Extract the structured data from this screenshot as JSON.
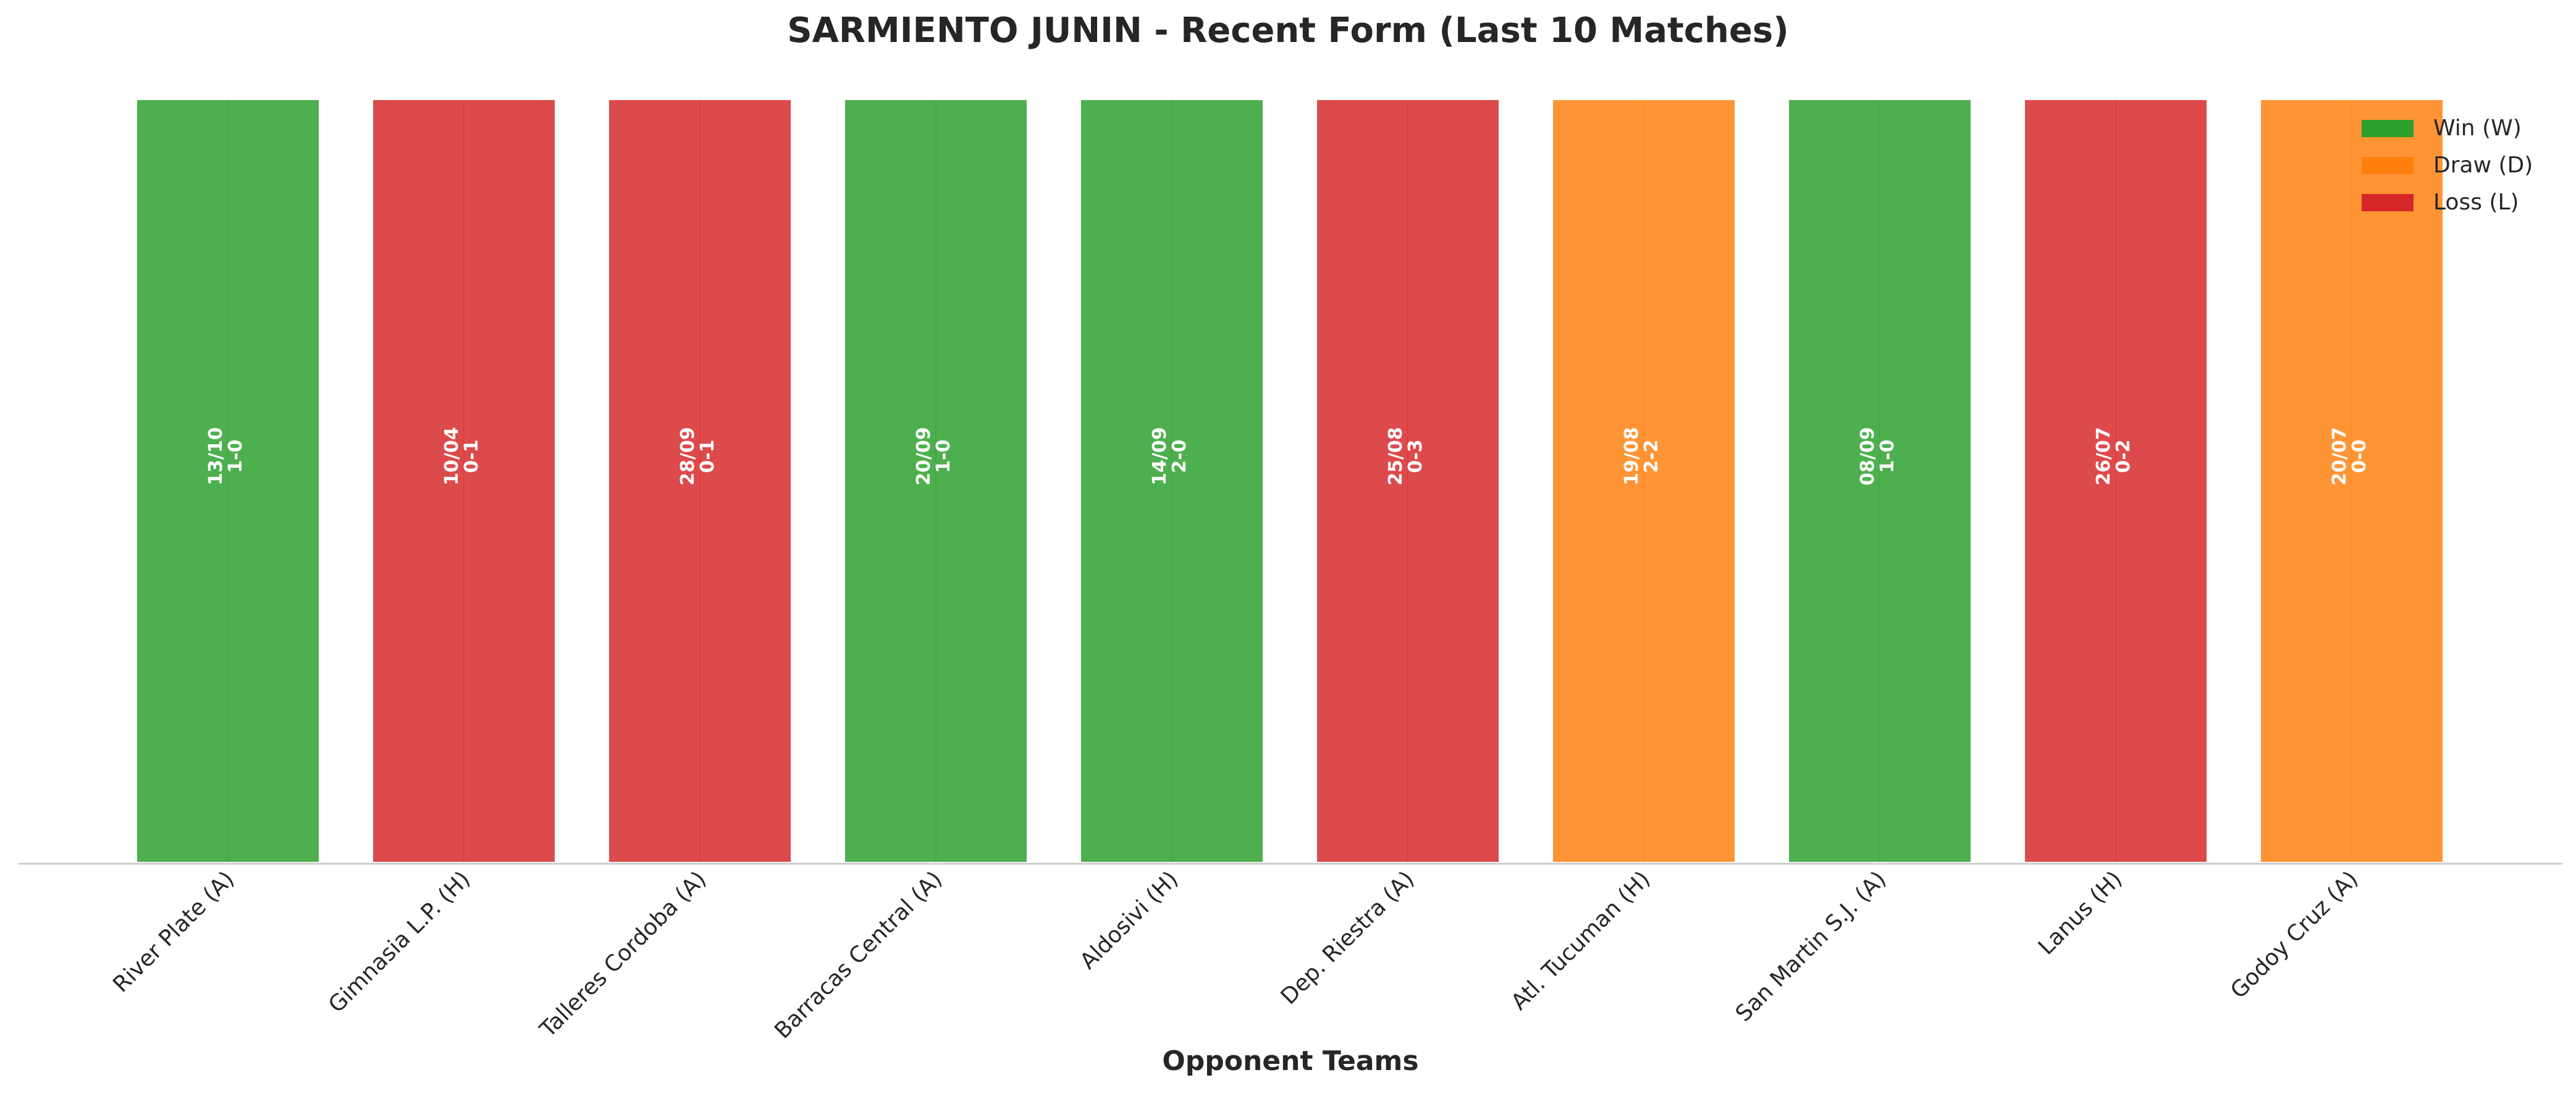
{
  "chart_data": {
    "type": "bar",
    "title": "SARMIENTO JUNIN - Recent Form (Last 10 Matches)",
    "xlabel": "Opponent Teams",
    "ylabel": "",
    "ylim": [
      0,
      1
    ],
    "grid": false,
    "legend_position": "top-right",
    "colors": {
      "W": "#2ca02c",
      "D": "#ff7f0e",
      "L": "#d62728"
    },
    "legend": [
      {
        "key": "W",
        "label": "Win (W)"
      },
      {
        "key": "D",
        "label": "Draw (D)"
      },
      {
        "key": "L",
        "label": "Loss (L)"
      }
    ],
    "categories": [
      "River Plate (A)",
      "Gimnasia L.P. (H)",
      "Talleres Cordoba (A)",
      "Barracas Central (A)",
      "Aldosivi (H)",
      "Dep. Riestra (A)",
      "Atl. Tucuman (H)",
      "San Martin S.J. (A)",
      "Lanus (H)",
      "Godoy Cruz (A)"
    ],
    "values": [
      1,
      1,
      1,
      1,
      1,
      1,
      1,
      1,
      1,
      1
    ],
    "results": [
      "W",
      "L",
      "L",
      "W",
      "W",
      "L",
      "D",
      "W",
      "L",
      "D"
    ],
    "dates": [
      "13/10",
      "10/04",
      "28/09",
      "20/09",
      "14/09",
      "25/08",
      "19/08",
      "08/09",
      "26/07",
      "20/07"
    ],
    "scores": [
      "1-0",
      "0-1",
      "0-1",
      "1-0",
      "2-0",
      "0-3",
      "2-2",
      "1-0",
      "0-2",
      "0-0"
    ]
  }
}
